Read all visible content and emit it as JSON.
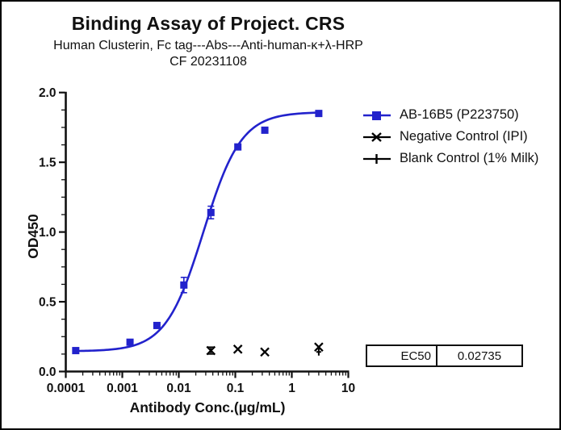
{
  "header": {
    "title": "Binding Assay of Project. CRS",
    "subtitle": "Human Clusterin, Fc tag---Abs---Anti-human-κ+λ-HRP",
    "date_line": "CF 20231108"
  },
  "legend": {
    "items": [
      {
        "label": "AB-16B5 (P223750)",
        "marker": "square",
        "color": "#2222CC"
      },
      {
        "label": "Negative Control (IPI)",
        "marker": "x",
        "color": "#000000"
      },
      {
        "label": "Blank Control (1% Milk)",
        "marker": "plus",
        "color": "#000000"
      }
    ]
  },
  "ec50_table": {
    "label": "EC50",
    "value": "0.02735"
  },
  "colors": {
    "accent_blue": "#2222CC",
    "axis_black": "#111111",
    "background": "#FFFFFF"
  },
  "chart_data": {
    "type": "scatter",
    "title": "Binding Assay of Project. CRS",
    "xlabel": "Antibody Conc.(µg/mL)",
    "ylabel": "OD450",
    "x_scale": "log",
    "xlim": [
      0.0001,
      10
    ],
    "ylim": [
      0.0,
      2.0
    ],
    "x_ticks": [
      0.0001,
      0.001,
      0.01,
      0.1,
      1,
      10
    ],
    "x_tick_labels": [
      "0.0001",
      "0.001",
      "0.01",
      "0.1",
      "1",
      "10"
    ],
    "y_ticks": [
      0.0,
      0.5,
      1.0,
      1.5,
      2.0
    ],
    "y_tick_labels": [
      "0.0",
      "0.5",
      "1.0",
      "1.5",
      "2.0"
    ],
    "y_minor_step": 0.125,
    "grid": false,
    "legend_position": "right",
    "series": [
      {
        "name": "AB-16B5 (P223750)",
        "marker": "square",
        "color": "#2222CC",
        "points": [
          {
            "x": 0.00015,
            "y": 0.15,
            "err": 0
          },
          {
            "x": 0.00137,
            "y": 0.21,
            "err": 0
          },
          {
            "x": 0.0041,
            "y": 0.33,
            "err": 0
          },
          {
            "x": 0.0123,
            "y": 0.62,
            "err": 0.055
          },
          {
            "x": 0.037,
            "y": 1.14,
            "err": 0.045
          },
          {
            "x": 0.111,
            "y": 1.61,
            "err": 0
          },
          {
            "x": 0.333,
            "y": 1.73,
            "err": 0
          },
          {
            "x": 3,
            "y": 1.85,
            "err": 0
          }
        ]
      },
      {
        "name": "Negative Control (IPI)",
        "marker": "x",
        "color": "#000000",
        "points": [
          {
            "x": 0.037,
            "y": 0.15,
            "err": 0.025
          },
          {
            "x": 0.111,
            "y": 0.16,
            "err": 0
          },
          {
            "x": 0.333,
            "y": 0.14,
            "err": 0
          },
          {
            "x": 3,
            "y": 0.175,
            "err": 0
          }
        ]
      },
      {
        "name": "Blank Control (1% Milk)",
        "marker": "plus",
        "color": "#000000",
        "points": [
          {
            "x": 3,
            "y": 0.14,
            "err": 0
          }
        ]
      }
    ],
    "fit_curve": {
      "series": "AB-16B5 (P223750)",
      "model": "4PL",
      "bottom": 0.145,
      "top": 1.86,
      "ec50": 0.02735,
      "hill": 1.3,
      "x_range": [
        0.00015,
        3
      ],
      "color": "#2222CC"
    },
    "ec50_label": "EC50",
    "ec50_value": "0.02735"
  }
}
